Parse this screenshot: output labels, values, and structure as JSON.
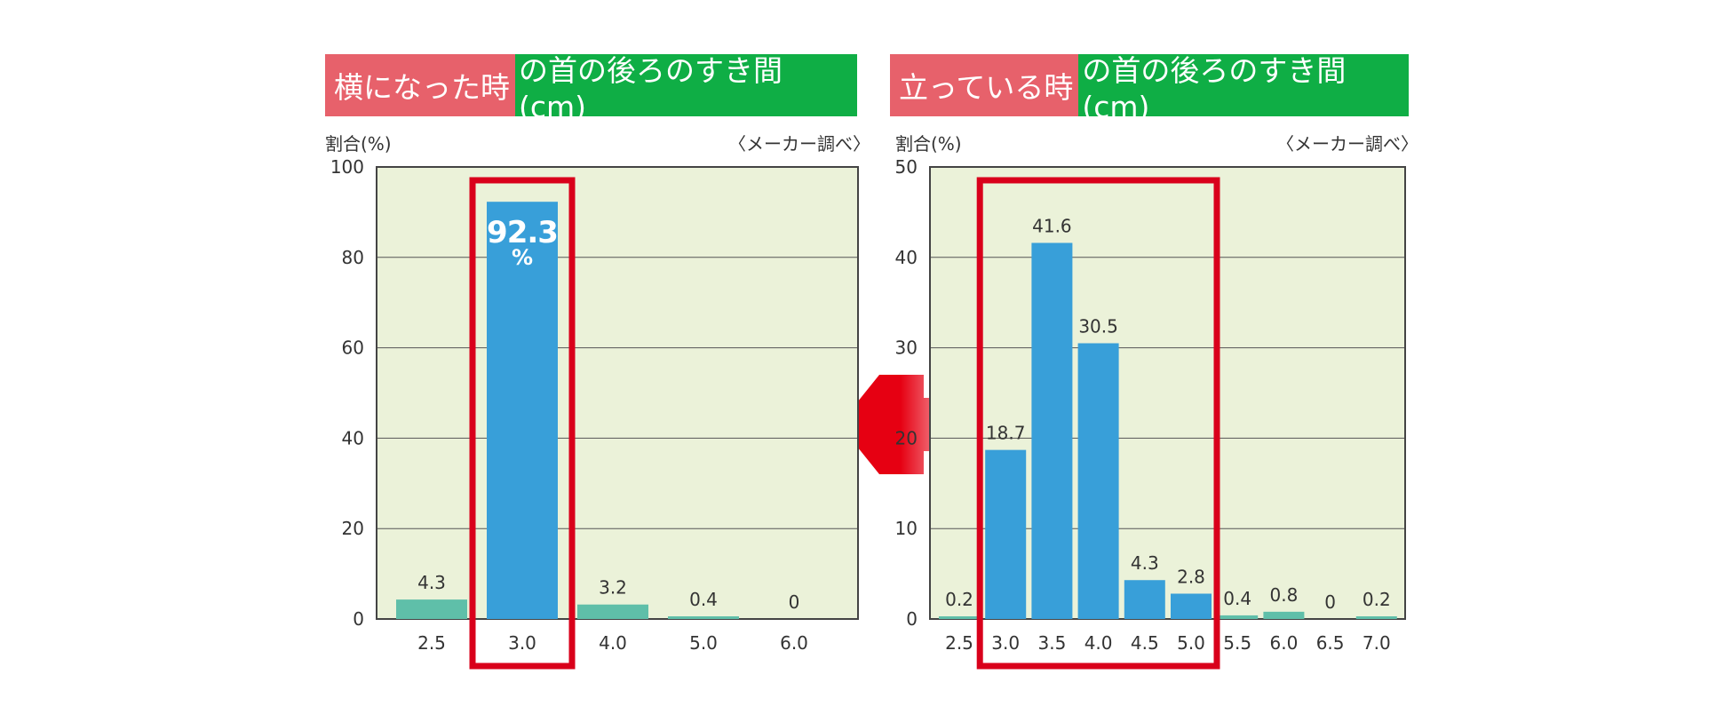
{
  "titles": {
    "left_highlight": "横になった時",
    "left_rest": "の首の後ろのすき間(cm)",
    "right_highlight": "立っている時",
    "right_rest": "の首の後ろのすき間(cm)"
  },
  "labels": {
    "ylabel_left": "割合(%)",
    "source_left": "〈メーカー調べ〉",
    "ylabel_right": "割合(%)",
    "source_right": "〈メーカー調べ〉"
  },
  "colors": {
    "plot_bg": "#ebf2d9",
    "bar_teal": "#5fbfa9",
    "bar_blue": "#389fd9",
    "highlight_red": "#d9001b",
    "title_red": "#e7616b",
    "title_green": "#0fae45",
    "grid": "#444444"
  },
  "chart_data": [
    {
      "type": "bar",
      "title": "横になった時の首の後ろのすき間(cm)",
      "ylabel": "割合(%)",
      "categories": [
        "2.5",
        "3.0",
        "4.0",
        "5.0",
        "6.0"
      ],
      "values": [
        4.3,
        92.3,
        3.2,
        0.4,
        0
      ],
      "value_labels": [
        "4.3",
        "92.3",
        "3.2",
        "0.4",
        "0"
      ],
      "percent_sign": "%",
      "highlight": [
        "3.0"
      ],
      "ylim": [
        0,
        100
      ],
      "yticks": [
        0,
        20,
        40,
        60,
        80,
        100
      ],
      "grid": true
    },
    {
      "type": "bar",
      "title": "立っている時の首の後ろのすき間(cm)",
      "ylabel": "割合(%)",
      "categories": [
        "2.5",
        "3.0",
        "3.5",
        "4.0",
        "4.5",
        "5.0",
        "5.5",
        "6.0",
        "6.5",
        "7.0"
      ],
      "values": [
        0.2,
        18.7,
        41.6,
        30.5,
        4.3,
        2.8,
        0.4,
        0.8,
        0,
        0.2
      ],
      "value_labels": [
        "0.2",
        "18.7",
        "41.6",
        "30.5",
        "4.3",
        "2.8",
        "0.4",
        "0.8",
        "0",
        "0.2"
      ],
      "highlight": [
        "3.0",
        "3.5",
        "4.0",
        "4.5",
        "5.0"
      ],
      "ylim": [
        0,
        50
      ],
      "yticks": [
        0,
        10,
        20,
        30,
        40,
        50
      ],
      "grid": true
    }
  ]
}
